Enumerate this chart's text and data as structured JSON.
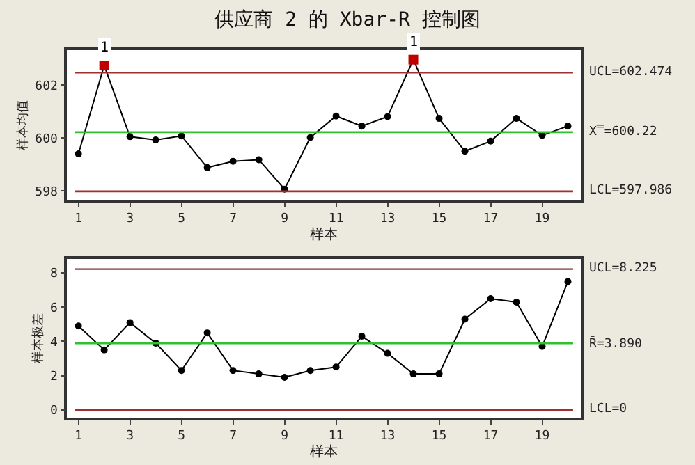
{
  "chart_data": [
    {
      "type": "line",
      "title": "供应商 2 的 Xbar-R 控制图",
      "xlabel": "样本",
      "ylabel": "样本均值",
      "xlim": [
        0.55,
        20.5
      ],
      "xticks": [
        1,
        3,
        5,
        7,
        9,
        11,
        13,
        15,
        17,
        19
      ],
      "ylim": [
        597.64,
        603.32
      ],
      "yticks": [
        598,
        600,
        602
      ],
      "grid": false,
      "series": [
        {
          "type": "line",
          "marker": "none",
          "color": "#000000",
          "x": [
            1,
            2,
            3,
            4,
            5,
            6,
            7,
            8,
            9,
            10,
            11,
            12,
            13,
            14,
            15,
            16,
            17,
            18,
            19,
            20
          ],
          "values": [
            599.4,
            602.74,
            600.05,
            599.93,
            600.08,
            598.88,
            599.12,
            599.18,
            598.07,
            600.02,
            600.83,
            600.45,
            600.81,
            602.96,
            600.74,
            599.5,
            599.88,
            600.74,
            600.1,
            600.45
          ]
        },
        {
          "type": "scatter",
          "marker": "circle",
          "color": "#000000",
          "x": [
            1,
            3,
            4,
            5,
            6,
            7,
            8,
            9,
            10,
            11,
            12,
            13,
            15,
            16,
            17,
            18,
            19,
            20
          ],
          "values": [
            599.4,
            600.05,
            599.93,
            600.08,
            598.88,
            599.12,
            599.18,
            598.07,
            600.02,
            600.83,
            600.45,
            600.81,
            600.74,
            599.5,
            599.88,
            600.74,
            600.1,
            600.45
          ]
        },
        {
          "type": "scatter",
          "marker": "square",
          "color": "#c00000",
          "x": [
            2,
            14
          ],
          "values": [
            602.74,
            602.96
          ]
        }
      ],
      "ref_lines": [
        {
          "axis": "y",
          "value": 602.474,
          "label": "UCL=602.474",
          "color": "#a03030"
        },
        {
          "axis": "y",
          "value": 600.22,
          "label": "X̿=600.22",
          "color": "#30c030"
        },
        {
          "axis": "y",
          "value": 597.986,
          "label": "LCL=597.986",
          "color": "#a03030"
        }
      ],
      "annotations": [
        {
          "text": "1",
          "x": 2,
          "y": 602.74
        },
        {
          "text": "1",
          "x": 14,
          "y": 602.96
        }
      ]
    },
    {
      "type": "line",
      "xlabel": "样本",
      "ylabel": "样本极差",
      "xlim": [
        0.55,
        20.5
      ],
      "xticks": [
        1,
        3,
        5,
        7,
        9,
        11,
        13,
        15,
        17,
        19
      ],
      "ylim": [
        -0.46,
        8.82
      ],
      "yticks": [
        0,
        2,
        4,
        6,
        8
      ],
      "grid": false,
      "series": [
        {
          "type": "line",
          "marker": "circle",
          "color": "#000000",
          "x": [
            1,
            2,
            3,
            4,
            5,
            6,
            7,
            8,
            9,
            10,
            11,
            12,
            13,
            14,
            15,
            16,
            17,
            18,
            19,
            20
          ],
          "values": [
            4.9,
            3.5,
            5.1,
            3.9,
            2.3,
            4.5,
            2.3,
            2.1,
            1.9,
            2.3,
            2.5,
            4.3,
            3.3,
            2.1,
            2.1,
            5.3,
            6.5,
            6.3,
            3.7,
            7.5
          ]
        }
      ],
      "ref_lines": [
        {
          "axis": "y",
          "value": 8.225,
          "label": "UCL=8.225",
          "color": "#a07070"
        },
        {
          "axis": "y",
          "value": 3.89,
          "label": "R̄=3.890",
          "color": "#30c030"
        },
        {
          "axis": "y",
          "value": 0,
          "label": "LCL=0",
          "color": "#a03030"
        }
      ]
    }
  ]
}
